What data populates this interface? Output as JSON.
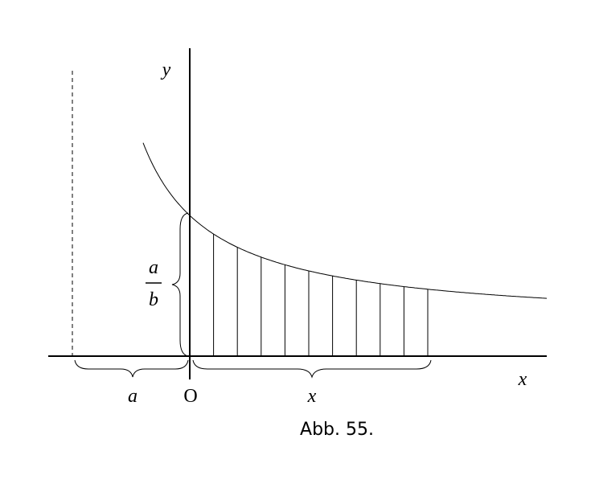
{
  "labels": {
    "y_axis": "y",
    "x_axis": "x",
    "fraction_numerator": "a",
    "fraction_denominator": "b",
    "brace_left": "a",
    "origin": "O",
    "brace_right": "x"
  },
  "caption": "Abb. 55."
}
